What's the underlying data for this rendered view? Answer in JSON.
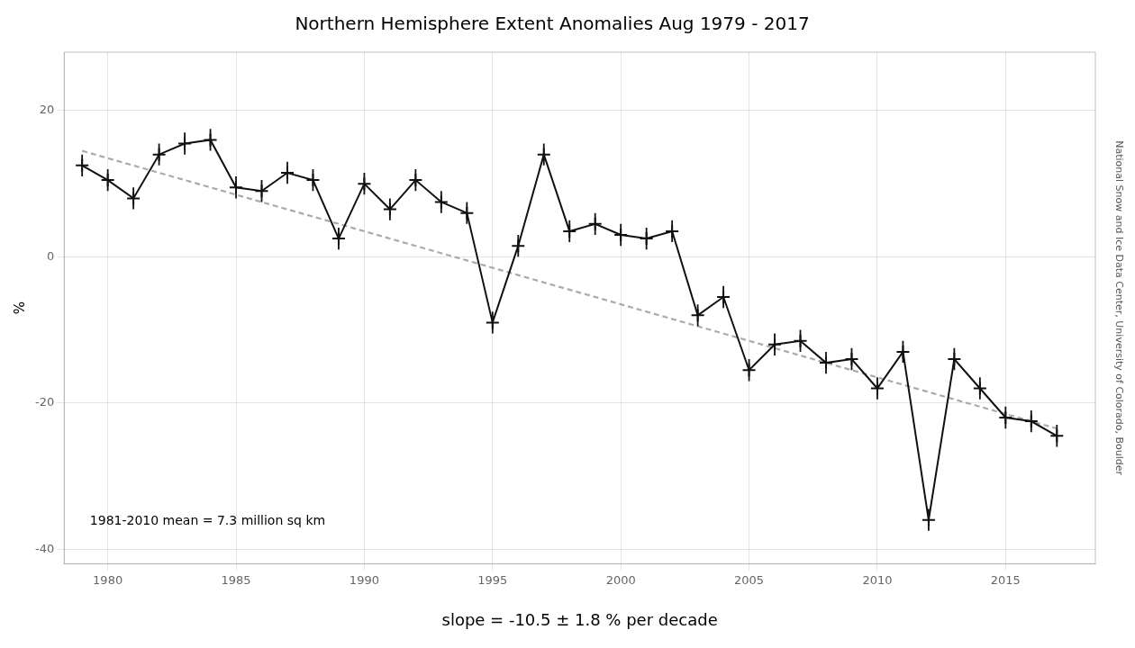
{
  "chart_data": {
    "type": "line",
    "title": "Northern Hemisphere Extent Anomalies Aug 1979 - 2017",
    "y_label": "%",
    "annotations": [
      "1981-2010 mean = 7.3 million sq km",
      "slope = -10.5 ± 1.8 % per decade",
      "National Snow and Ice Data Center, University of Colorado, Boulder"
    ],
    "series": [
      {
        "type": "line",
        "x": [
          1979,
          1980,
          1981,
          1982,
          1983,
          1984,
          1985,
          1986,
          1987,
          1988,
          1989,
          1990,
          1991,
          1992,
          1993,
          1994,
          1995,
          1996,
          1997,
          1998,
          1999,
          2000,
          2001,
          2002,
          2003,
          2004,
          2005,
          2006,
          2007,
          2008,
          2009,
          2010,
          2011,
          2012,
          2013,
          2014,
          2015,
          2016,
          2017
        ],
        "values": [
          12.5,
          10.5,
          8.0,
          14.0,
          15.5,
          16.0,
          9.5,
          9.0,
          11.5,
          10.5,
          2.5,
          10.0,
          6.5,
          10.5,
          7.5,
          6.0,
          -9.0,
          1.5,
          14.0,
          3.5,
          4.5,
          3.0,
          2.5,
          3.5,
          -8.0,
          -5.5,
          -15.5,
          -12.0,
          -11.5,
          -14.5,
          -14.0,
          -18.0,
          -13.0,
          -36.0,
          -14.0,
          -18.0,
          -22.0,
          -22.5,
          -24.5
        ],
        "errors": [
          1.5,
          1.5,
          1.5,
          1.5,
          1.5,
          1.5,
          1.5,
          1.5,
          1.5,
          1.5,
          1.5,
          1.5,
          1.5,
          1.5,
          1.5,
          1.5,
          1.5,
          1.5,
          1.5,
          1.5,
          1.5,
          1.5,
          1.5,
          1.5,
          1.5,
          1.5,
          1.5,
          1.5,
          1.5,
          1.5,
          1.5,
          1.5,
          1.5,
          1.5,
          1.5,
          1.5,
          1.5,
          1.5,
          1.5
        ],
        "color": "#111111",
        "marker": "plus",
        "line_style": "solid"
      },
      {
        "type": "line",
        "x": [
          1979,
          2017
        ],
        "values": [
          14.5,
          -23.5
        ],
        "color": "#aaaaaa",
        "marker": "none",
        "line_style": "dashed"
      }
    ],
    "xlim": [
      1978.3,
      2018.5
    ],
    "ylim": [
      -42,
      28
    ],
    "xticks": [
      1980,
      1985,
      1990,
      1995,
      2000,
      2005,
      2010,
      2015
    ],
    "yticks": [
      -40,
      -20,
      0,
      20
    ],
    "grid": true
  }
}
